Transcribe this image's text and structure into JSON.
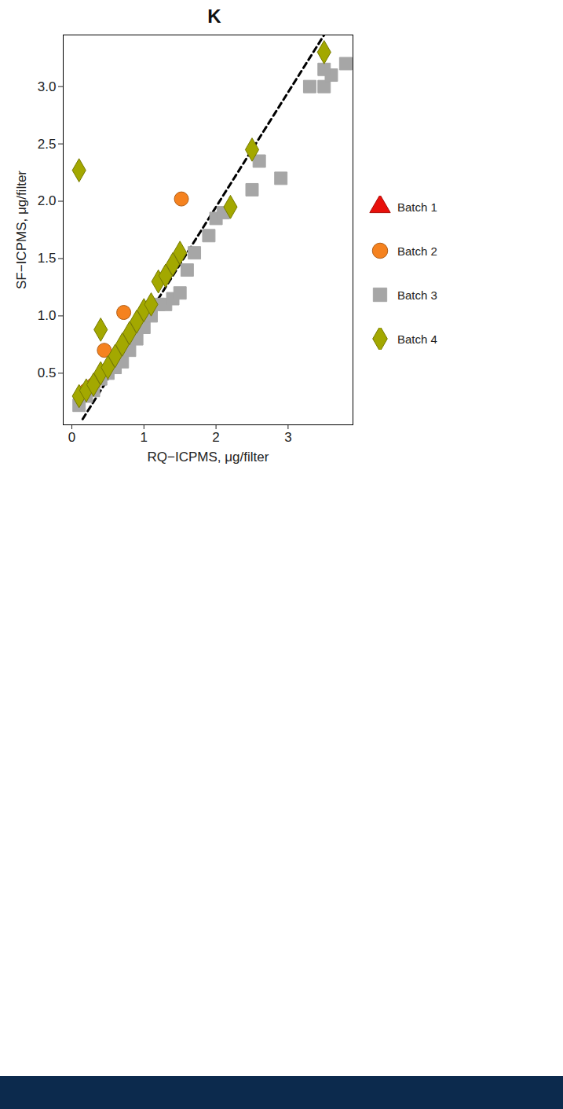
{
  "chart_data": {
    "type": "scatter",
    "title": "K",
    "x_label": "RQ−ICPMS, μg/filter",
    "y_label": "SF−ICPMS, μg/filter",
    "xlim": [
      -0.12,
      3.9
    ],
    "ylim": [
      0.05,
      3.45
    ],
    "xticks": [
      0,
      1,
      2,
      3
    ],
    "yticks": [
      0.5,
      {
        "value": 1,
        "label": "1.0"
      },
      1.5,
      {
        "value": 2,
        "label": "2.0"
      },
      2.5,
      {
        "value": 3,
        "label": "3.0"
      }
    ],
    "grid": false,
    "legend": "right",
    "reference_line": {
      "x": [
        0.15,
        3.5
      ],
      "y": [
        0.1,
        3.45
      ],
      "color": "#000000",
      "line_style": "dashed"
    },
    "series": [
      {
        "name": "Batch 1",
        "color": "#e8100b",
        "marker": "triangle",
        "x": [],
        "y": []
      },
      {
        "name": "Batch 2",
        "color": "#f5821f",
        "marker": "circle",
        "x": [
          1.52,
          0.72,
          0.3,
          0.45,
          0.2
        ],
        "y": [
          2.02,
          1.03,
          0.4,
          0.7,
          0.35
        ]
      },
      {
        "name": "Batch 3",
        "color": "#a6a6a6",
        "marker": "square",
        "x": [
          0.1,
          0.2,
          0.3,
          0.4,
          0.5,
          0.6,
          0.7,
          0.8,
          0.9,
          1.0,
          1.1,
          1.2,
          1.3,
          1.4,
          1.5,
          1.6,
          1.7,
          1.9,
          2.0,
          2.1,
          2.5,
          2.6,
          2.9,
          3.3,
          3.5,
          3.6,
          3.8,
          3.5
        ],
        "y": [
          0.22,
          0.3,
          0.35,
          0.45,
          0.5,
          0.55,
          0.6,
          0.7,
          0.8,
          0.9,
          1.0,
          1.1,
          1.1,
          1.15,
          1.2,
          1.4,
          1.55,
          1.7,
          1.85,
          1.9,
          2.1,
          2.35,
          2.2,
          3.0,
          3.0,
          3.1,
          3.2,
          3.15
        ]
      },
      {
        "name": "Batch 4",
        "color": "#a3a800",
        "marker": "diamond",
        "x": [
          0.1,
          0.1,
          0.2,
          0.3,
          0.4,
          0.4,
          0.5,
          0.6,
          0.7,
          0.8,
          0.9,
          1.0,
          1.1,
          1.2,
          1.3,
          1.4,
          1.5,
          2.2,
          2.5,
          3.5
        ],
        "y": [
          2.27,
          0.3,
          0.35,
          0.4,
          0.88,
          0.5,
          0.55,
          0.65,
          0.75,
          0.85,
          0.95,
          1.05,
          1.1,
          1.3,
          1.35,
          1.45,
          1.55,
          1.95,
          2.45,
          3.3
        ]
      }
    ]
  }
}
